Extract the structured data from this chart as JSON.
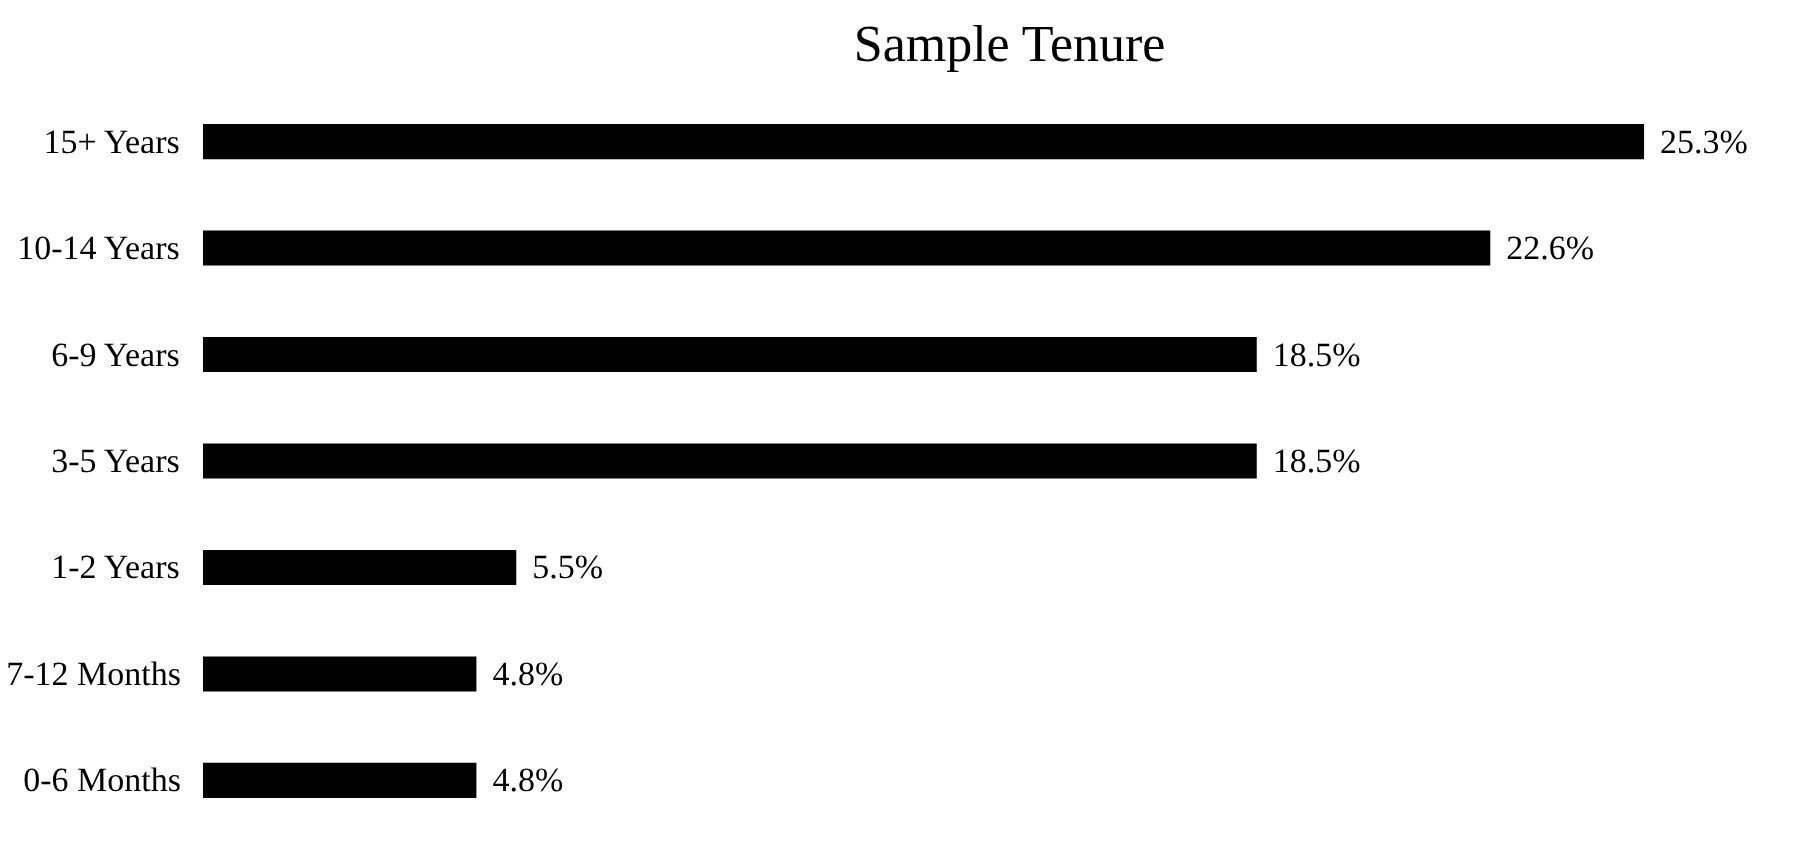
{
  "chart_data": {
    "type": "bar",
    "orientation": "horizontal",
    "title": "Sample Tenure",
    "categories": [
      "15+ Years",
      "10-14 Years",
      "6-9 Years",
      "3-5 Years",
      "1-2 Years",
      "7-12 Months",
      "0-6 Months"
    ],
    "values": [
      25.3,
      22.6,
      18.5,
      18.5,
      5.5,
      4.8,
      4.8
    ],
    "value_labels": [
      "25.3%",
      "22.6%",
      "18.5%",
      "18.5%",
      "5.5%",
      "4.8%",
      "4.8%"
    ],
    "color": "#000000",
    "tick_labels": "y",
    "grid": false
  }
}
